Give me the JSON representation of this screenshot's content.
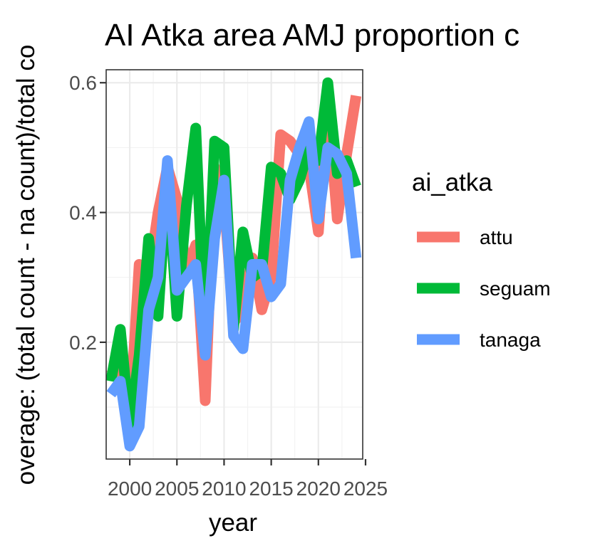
{
  "chart_data": {
    "type": "line",
    "title": "AI Atka area AMJ proportion c",
    "xlabel": "year",
    "ylabel": "overage: (total count - na count)/total co",
    "xlim": [
      1997.5,
      2024.7
    ],
    "ylim": [
      0.02,
      0.62
    ],
    "x_ticks": [
      2000,
      2005,
      2010,
      2015,
      2020,
      2025
    ],
    "x_tick_labels": [
      "2000",
      "2005",
      "2010",
      "2015",
      "2020",
      "2025"
    ],
    "y_ticks": [
      0.2,
      0.4,
      0.6
    ],
    "y_tick_labels": [
      "0.2",
      "0.4",
      "0.6"
    ],
    "grid": true,
    "legend": {
      "title": "ai_atka",
      "position": "right"
    },
    "series": [
      {
        "name": "attu",
        "color": "#F8766D",
        "x": [
          1998,
          1999,
          2000,
          2001,
          2002,
          2003,
          2004,
          2005,
          2006,
          2007,
          2008,
          2009,
          2010,
          2011,
          2012,
          2013,
          2014,
          2015,
          2016,
          2017,
          2018,
          2019,
          2020,
          2021,
          2022,
          2023,
          2024
        ],
        "y": [
          0.15,
          0.17,
          0.08,
          0.32,
          0.3,
          0.4,
          0.47,
          0.42,
          0.31,
          0.35,
          0.11,
          0.47,
          0.42,
          0.23,
          0.25,
          0.33,
          0.25,
          0.3,
          0.52,
          0.51,
          0.49,
          0.47,
          0.37,
          0.57,
          0.39,
          0.49,
          0.58
        ]
      },
      {
        "name": "seguam",
        "color": "#00BA38",
        "x": [
          1998,
          1999,
          2000,
          2001,
          2002,
          2003,
          2004,
          2005,
          2006,
          2007,
          2008,
          2009,
          2010,
          2011,
          2012,
          2013,
          2014,
          2015,
          2016,
          2017,
          2018,
          2019,
          2020,
          2021,
          2022,
          2023,
          2024
        ],
        "y": [
          0.14,
          0.22,
          0.07,
          0.18,
          0.36,
          0.24,
          0.46,
          0.24,
          0.41,
          0.53,
          0.19,
          0.51,
          0.5,
          0.22,
          0.37,
          0.3,
          0.31,
          0.47,
          0.46,
          0.42,
          0.45,
          0.5,
          0.48,
          0.6,
          0.46,
          0.48,
          0.44
        ]
      },
      {
        "name": "tanaga",
        "color": "#619CFF",
        "x": [
          1998,
          1999,
          2000,
          2001,
          2002,
          2003,
          2004,
          2005,
          2006,
          2007,
          2008,
          2009,
          2010,
          2011,
          2012,
          2013,
          2014,
          2015,
          2016,
          2017,
          2018,
          2019,
          2020,
          2021,
          2022,
          2023,
          2024
        ],
        "y": [
          0.12,
          0.14,
          0.04,
          0.07,
          0.25,
          0.3,
          0.48,
          0.28,
          0.3,
          0.32,
          0.18,
          0.36,
          0.45,
          0.21,
          0.19,
          0.32,
          0.32,
          0.27,
          0.29,
          0.45,
          0.5,
          0.54,
          0.39,
          0.5,
          0.49,
          0.46,
          0.33
        ]
      }
    ]
  }
}
